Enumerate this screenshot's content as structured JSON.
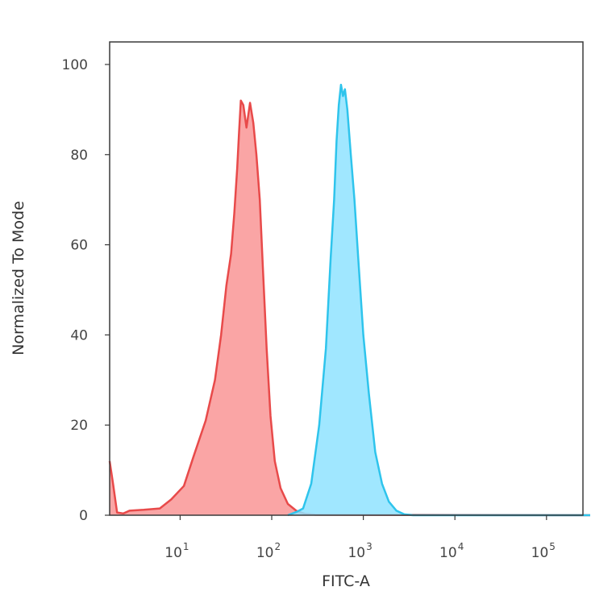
{
  "chart_data": {
    "type": "area",
    "title": "",
    "xlabel": "FITC-A",
    "ylabel": "Normalized To Mode",
    "x_scale": "log",
    "xlim": [
      1.7,
      250000
    ],
    "ylim": [
      0,
      105
    ],
    "grid": false,
    "legend": "none",
    "y_ticks": [
      0,
      20,
      40,
      60,
      80,
      100
    ],
    "y_tick_labels": [
      "0",
      "20",
      "40",
      "60",
      "80",
      "100"
    ],
    "x_ticks": [
      10,
      100,
      1000,
      10000,
      100000
    ],
    "x_tick_labels": [
      {
        "base": "10",
        "exp": "1"
      },
      {
        "base": "10",
        "exp": "2"
      },
      {
        "base": "10",
        "exp": "3"
      },
      {
        "base": "10",
        "exp": "4"
      },
      {
        "base": "10",
        "exp": "5"
      }
    ],
    "series": [
      {
        "color": "#e84a4a",
        "fill": "#f99595",
        "points": [
          [
            1.7,
            12
          ],
          [
            1.85,
            7
          ],
          [
            2.05,
            0.6
          ],
          [
            2.4,
            0.4
          ],
          [
            2.8,
            1
          ],
          [
            4,
            1.2
          ],
          [
            6,
            1.5
          ],
          [
            8,
            3.5
          ],
          [
            11,
            6.5
          ],
          [
            14,
            13
          ],
          [
            19,
            21
          ],
          [
            24,
            30
          ],
          [
            28,
            40
          ],
          [
            32,
            51
          ],
          [
            36,
            58
          ],
          [
            39,
            67
          ],
          [
            42,
            77
          ],
          [
            44,
            85
          ],
          [
            46,
            92
          ],
          [
            49,
            91
          ],
          [
            53,
            86
          ],
          [
            58,
            91.5
          ],
          [
            63,
            87
          ],
          [
            68,
            80
          ],
          [
            74,
            70
          ],
          [
            80,
            55
          ],
          [
            88,
            37
          ],
          [
            97,
            22
          ],
          [
            108,
            12
          ],
          [
            125,
            6
          ],
          [
            150,
            2.5
          ],
          [
            185,
            1
          ],
          [
            230,
            0.3
          ],
          [
            300,
            0.1
          ],
          [
            300000,
            0
          ]
        ]
      },
      {
        "color": "#2ec4ec",
        "fill": "#8fe3ff",
        "points": [
          [
            150,
            0
          ],
          [
            190,
            0.8
          ],
          [
            220,
            1.5
          ],
          [
            270,
            7
          ],
          [
            330,
            20
          ],
          [
            390,
            37
          ],
          [
            440,
            57
          ],
          [
            480,
            70
          ],
          [
            510,
            83
          ],
          [
            540,
            91
          ],
          [
            570,
            95.5
          ],
          [
            600,
            93
          ],
          [
            630,
            94.5
          ],
          [
            670,
            90
          ],
          [
            730,
            80
          ],
          [
            800,
            70
          ],
          [
            880,
            57
          ],
          [
            1000,
            40
          ],
          [
            1150,
            27
          ],
          [
            1350,
            14
          ],
          [
            1600,
            7
          ],
          [
            1900,
            3
          ],
          [
            2300,
            1
          ],
          [
            2800,
            0.2
          ],
          [
            3500,
            0
          ],
          [
            300000,
            0
          ]
        ]
      }
    ]
  }
}
